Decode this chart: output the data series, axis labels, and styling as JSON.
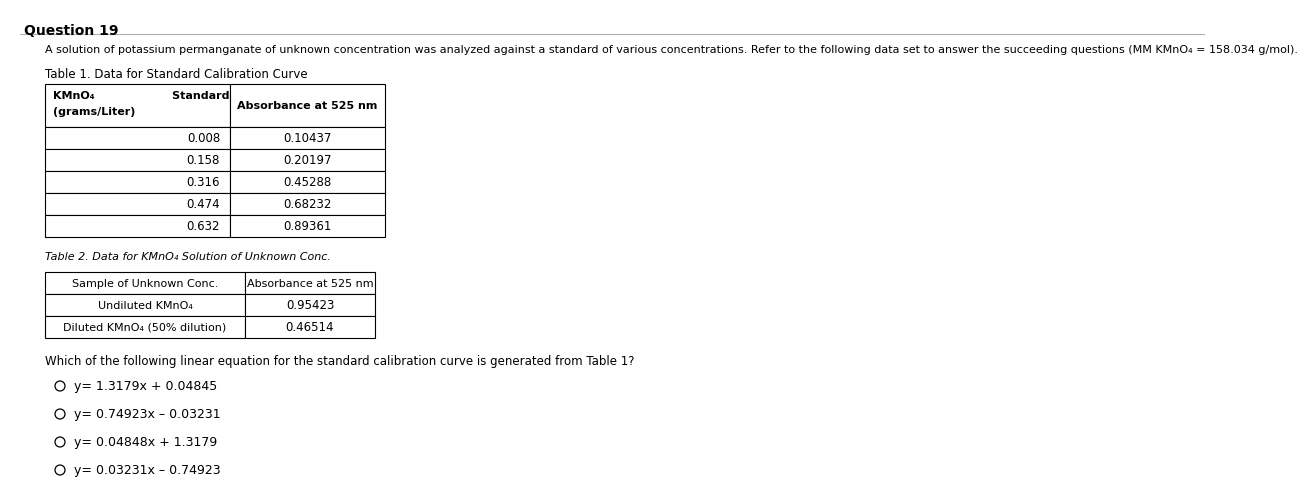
{
  "title": "Question 19",
  "intro_text": "A solution of potassium permanganate of unknown concentration was analyzed against a standard of various concentrations. Refer to the following data set to answer the succeeding questions (MM KMnO₄ = 158.034 g/mol).",
  "table1_title": "Table 1. Data for Standard Calibration Curve",
  "table1_col1_header_line1": "KMnO₄                    Standard",
  "table1_col1_header_line2": "(grams/Liter)",
  "table1_col2_header": "Absorbance at 525 nm",
  "table1_data": [
    [
      "0.008",
      "0.10437"
    ],
    [
      "0.158",
      "0.20197"
    ],
    [
      "0.316",
      "0.45288"
    ],
    [
      "0.474",
      "0.68232"
    ],
    [
      "0.632",
      "0.89361"
    ]
  ],
  "table2_title": "Table 2. Data for KMnO₄ Solution of Unknown Conc.",
  "table2_headers": [
    "Sample of Unknown Conc.",
    "Absorbance at 525 nm"
  ],
  "table2_data": [
    [
      "Undiluted KMnO₄",
      "0.95423"
    ],
    [
      "Diluted KMnO₄ (50% dilution)",
      "0.46514"
    ]
  ],
  "question_text": "Which of the following linear equation for the standard calibration curve is generated from Table 1?",
  "options": [
    "y= 1.3179x + 0.04845",
    "y= 0.74923x – 0.03231",
    "y= 0.04848x + 1.3179",
    "y= 0.03231x – 0.74923"
  ],
  "bg_color": "#ffffff",
  "text_color": "#000000"
}
